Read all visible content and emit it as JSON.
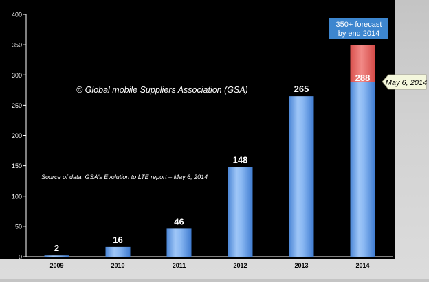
{
  "chart_data": {
    "type": "bar",
    "categories": [
      "2009",
      "2010",
      "2011",
      "2012",
      "2013",
      "2014"
    ],
    "values": [
      2,
      16,
      46,
      148,
      265,
      288
    ],
    "data_labels": [
      "2",
      "16",
      "46",
      "148",
      "265",
      "288"
    ],
    "forecast": {
      "category": "2014",
      "total": 350,
      "label": "350+ forecast\nby end 2014",
      "color": "#e5615e"
    },
    "callout": {
      "category": "2014",
      "text": "May 6, 2014"
    },
    "ylim": [
      0,
      400
    ],
    "yticks": [
      0,
      50,
      100,
      150,
      200,
      250,
      300,
      350,
      400
    ],
    "grid": false,
    "annotations": [
      "© Global mobile Suppliers Association (GSA)",
      "Source of data: GSA's Evolution to LTE report – May 6, 2014"
    ],
    "colors": {
      "bar": "#6fa6ec",
      "forecast_box": "#3d86cf",
      "callout_bg": "#f4f7dc",
      "background": "#000000"
    }
  }
}
